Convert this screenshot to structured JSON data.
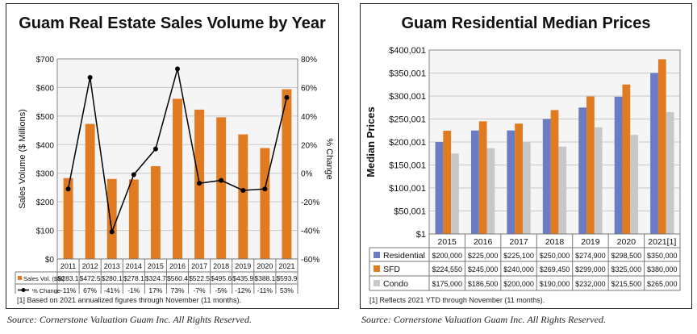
{
  "chart_data": [
    {
      "type": "bar",
      "title": "Guam Real Estate Sales Volume by Year",
      "categories": [
        "2011",
        "2012",
        "2013",
        "2014",
        "2015",
        "2016",
        "2017",
        "2018",
        "2019",
        "2020",
        "2021"
      ],
      "series": [
        {
          "name": "Sales Vol. ($M)",
          "type": "bar",
          "axis": "left",
          "color": "#E07B22",
          "values": [
            283.1,
            472.5,
            280.1,
            278.1,
            324.7,
            560.4,
            522.5,
            495.6,
            435.9,
            388.1,
            593.9
          ],
          "labels": [
            "$283.1",
            "$472.5",
            "$280.1",
            "$278.1",
            "$324.7",
            "$560.4",
            "$522.5",
            "$495.6",
            "$435.9",
            "$388.1",
            "$593.9"
          ]
        },
        {
          "name": "% Change",
          "type": "line",
          "axis": "right",
          "color": "#000000",
          "values": [
            -11,
            67,
            -41,
            -1,
            17,
            73,
            -7,
            -5,
            -12,
            -11,
            53
          ],
          "labels": [
            "-11%",
            "67%",
            "-41%",
            "-1%",
            "17%",
            "73%",
            "-7%",
            "-5%",
            "-12%",
            "-11%",
            "53%"
          ]
        }
      ],
      "ylabel": "Sales Volume ($ Millions)",
      "ylabel_right": "% Change",
      "ylim": [
        0,
        700
      ],
      "yticks": [
        "$0",
        "$100",
        "$200",
        "$300",
        "$400",
        "$500",
        "$600",
        "$700"
      ],
      "ylim_right": [
        -60,
        80
      ],
      "yticks_right": [
        "-60%",
        "-40%",
        "-20%",
        "0%",
        "20%",
        "40%",
        "60%",
        "80%"
      ],
      "grid": true,
      "legend": "data-table",
      "note": "[1] Based on 2021 annualized figures through November (11 months).",
      "source": "Source: Cornerstone Valuation Guam Inc. All Rights Reserved."
    },
    {
      "type": "bar",
      "title": "Guam Residential Median Prices",
      "categories": [
        "2015",
        "2016",
        "2017",
        "2018",
        "2019",
        "2020",
        "2021[1]"
      ],
      "series": [
        {
          "name": "Residential",
          "color": "#6B7BC4",
          "values": [
            200000,
            225000,
            225100,
            250000,
            274900,
            298500,
            350000
          ],
          "labels": [
            "$200,000",
            "$225,000",
            "$225,100",
            "$250,000",
            "$274,900",
            "$298,500",
            "$350,000"
          ]
        },
        {
          "name": "SFD",
          "color": "#E07B22",
          "values": [
            224550,
            245000,
            240000,
            269450,
            299000,
            325000,
            380000
          ],
          "labels": [
            "$224,550",
            "$245,000",
            "$240,000",
            "$269,450",
            "$299,000",
            "$325,000",
            "$380,000"
          ]
        },
        {
          "name": "Condo",
          "color": "#C8C8C8",
          "values": [
            175000,
            186500,
            200000,
            190000,
            232000,
            215500,
            265000
          ],
          "labels": [
            "$175,000",
            "$186,500",
            "$200,000",
            "$190,000",
            "$232,000",
            "$215,500",
            "$265,000"
          ]
        }
      ],
      "ylabel": "Median Prices",
      "ylim": [
        1,
        400001
      ],
      "yticks": [
        "$1",
        "$50,001",
        "$100,001",
        "$150,001",
        "$200,001",
        "$250,001",
        "$300,001",
        "$350,001",
        "$400,001"
      ],
      "grid": true,
      "legend": "data-table",
      "note": "[1] Reflects 2021 YTD through November (11 months).",
      "source": "Source: Cornerstone Valuation Guam Inc. All Rights Reserved."
    }
  ]
}
